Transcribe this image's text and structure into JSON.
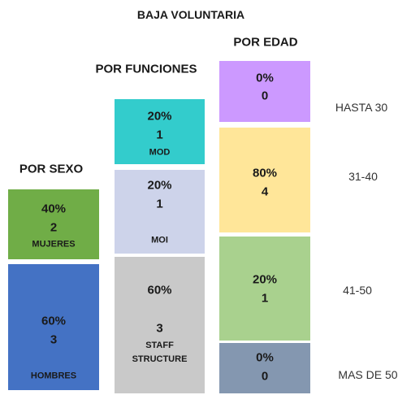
{
  "title": "BAJA VOLUNTARIA",
  "groups": [
    {
      "title": "POR SEXO",
      "blocks": [
        {
          "pct": "40%",
          "count": "2",
          "label": "MUJERES"
        },
        {
          "pct": "60%",
          "count": "3",
          "label": "HOMBRES"
        }
      ]
    },
    {
      "title": "POR FUNCIONES",
      "blocks": [
        {
          "pct": "20%",
          "count": "1",
          "label": "MOD"
        },
        {
          "pct": "20%",
          "count": "1",
          "label": "MOI"
        },
        {
          "pct": "60%",
          "count": "3",
          "label": "STAFF STRUCTURE"
        }
      ]
    },
    {
      "title": "POR EDAD",
      "blocks": [
        {
          "pct": "0%",
          "count": "0",
          "label": "HASTA 30"
        },
        {
          "pct": "80%",
          "count": "4",
          "label": "31-40"
        },
        {
          "pct": "20%",
          "count": "1",
          "label": "41-50"
        },
        {
          "pct": "0%",
          "count": "0",
          "label": "MAS DE 50"
        }
      ]
    }
  ]
}
